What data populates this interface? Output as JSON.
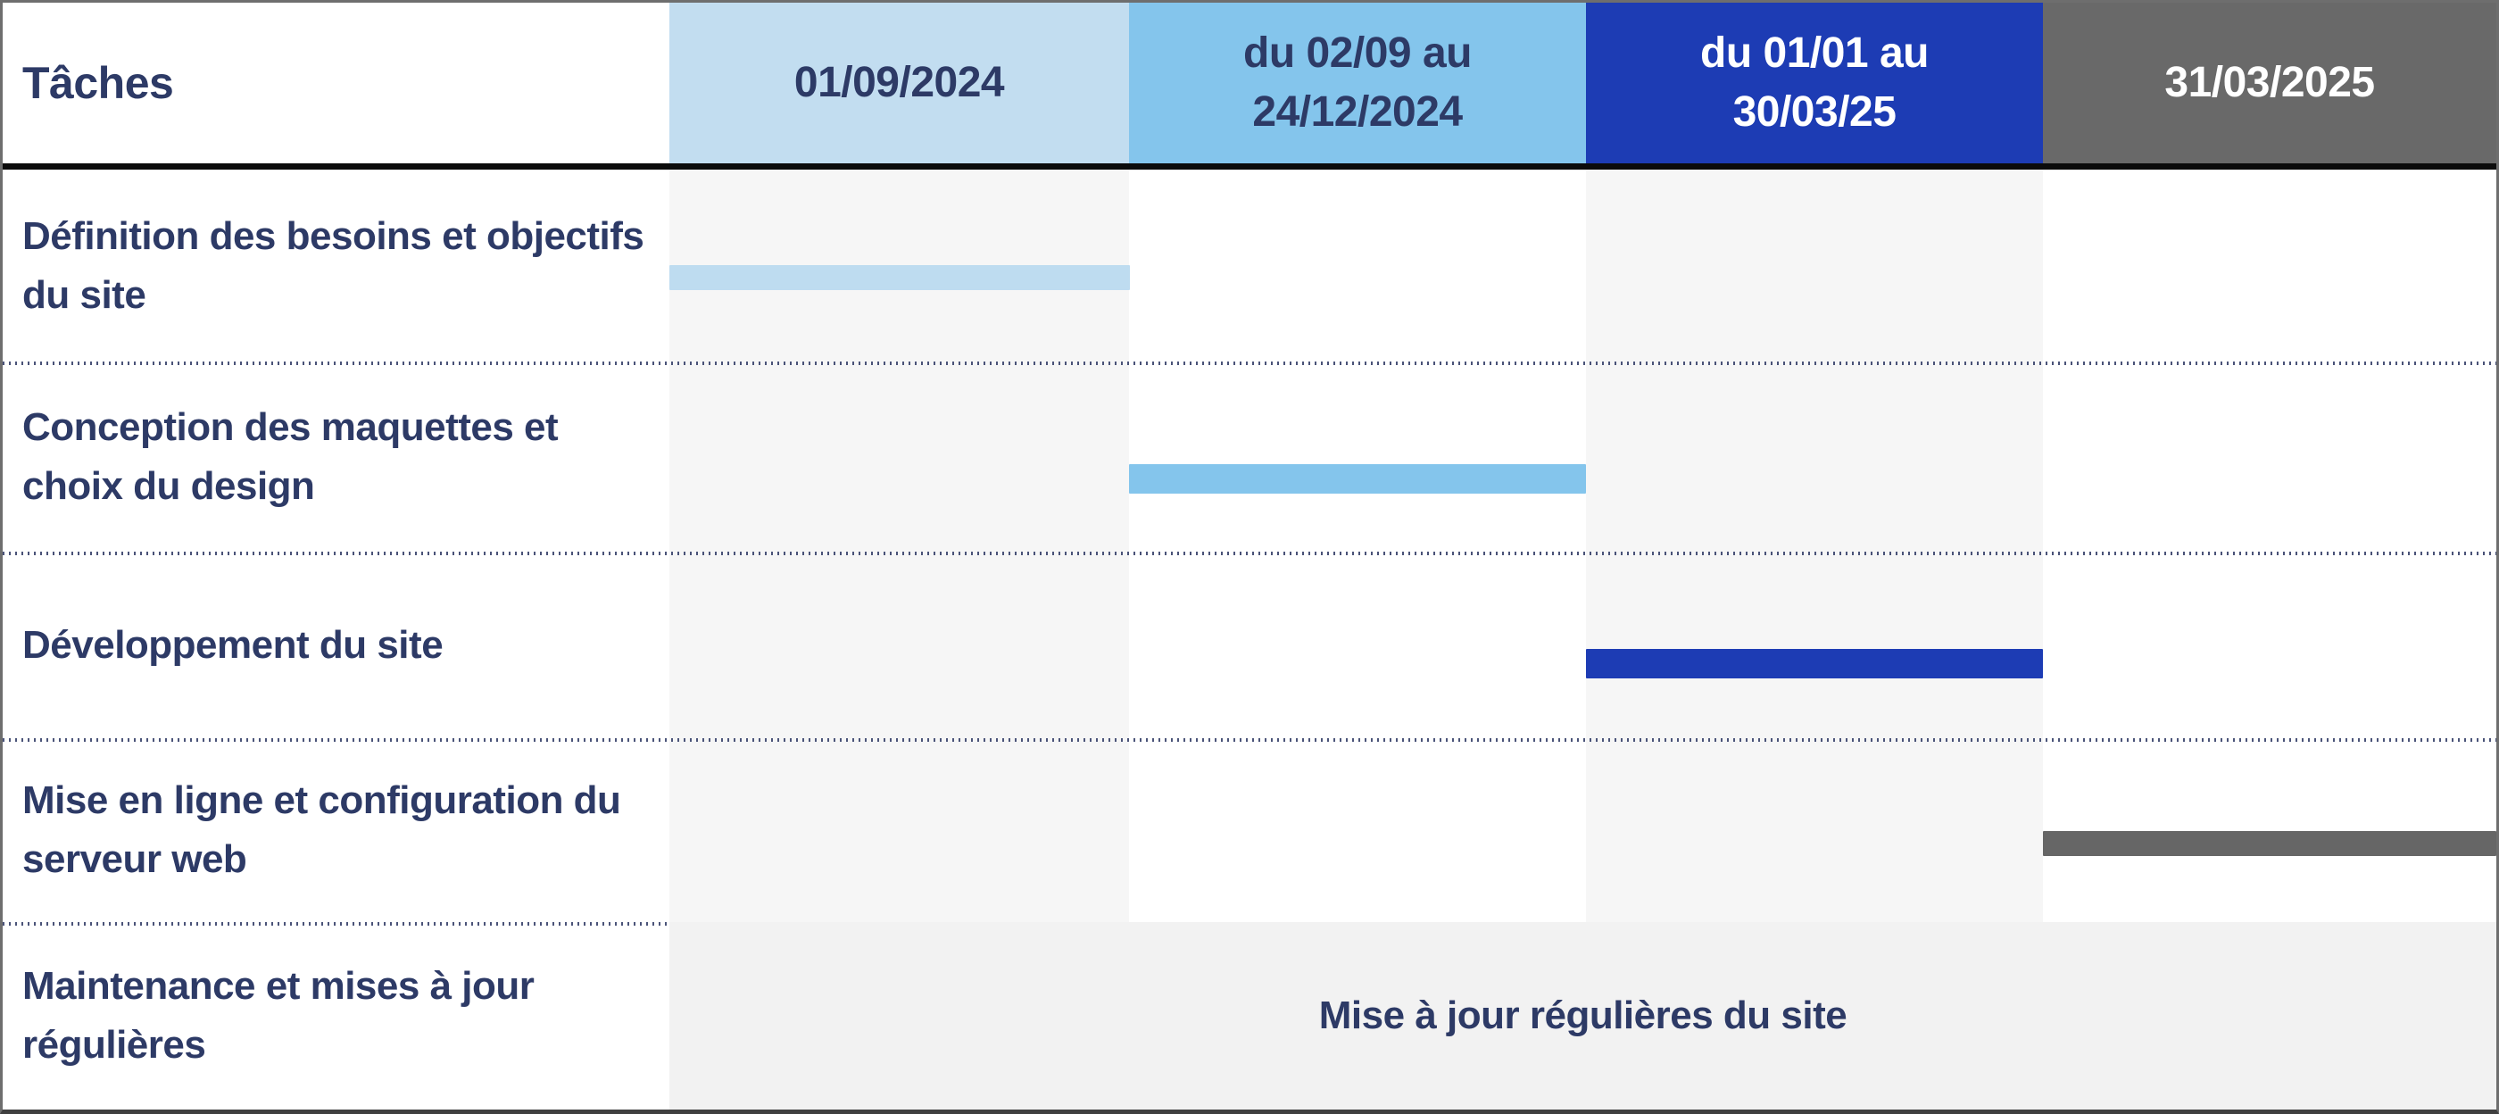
{
  "chart_data": {
    "type": "table",
    "subtype": "gantt",
    "title": "Tâches",
    "columns": [
      "Tâches",
      "01/09/2024",
      "du 02/09 au 24/12/2024",
      "du 01/01 au 30/03/25",
      "31/03/2025"
    ],
    "tasks": [
      {
        "label": "Définition des besoins et objectifs du site",
        "bar_period": "01/09/2024",
        "bar_column_index": 1
      },
      {
        "label": "Conception des maquettes et choix du design",
        "bar_period": "du 02/09 au 24/12/2024",
        "bar_column_index": 2
      },
      {
        "label": "Développement du site",
        "bar_period": "du 01/01 au 30/03/25",
        "bar_column_index": 3
      },
      {
        "label": "Mise en ligne et configuration du serveur web",
        "bar_period": "31/03/2025",
        "bar_column_index": 4
      },
      {
        "label": "Maintenance et mises à jour régulières",
        "bar_period": null,
        "bar_column_index": null,
        "note": "Mise à jour régulières du site"
      }
    ],
    "legend_position": "none",
    "grid": "dotted row dividers"
  },
  "header": {
    "col0": "Tâches",
    "col1": "01/09/2024",
    "col2": "du 02/09 au 24/12/2024",
    "col3": "du 01/01 au 30/03/25",
    "col4": "31/03/2025"
  },
  "tasks": {
    "0": {
      "label": "Définition des besoins et objectifs du site"
    },
    "1": {
      "label": "Conception des maquettes et choix du design"
    },
    "2": {
      "label": "Développement du site"
    },
    "3": {
      "label": "Mise en ligne et configuration du serveur web"
    },
    "4": {
      "label": "Maintenance et mises à jour régulières"
    }
  },
  "merged_note": "Mise à jour régulières du site",
  "colors": {
    "navy_text": "#2d3a66",
    "header_col1_bg": "#c2ddf0",
    "header_col2_bg": "#84c5ec",
    "header_col3_bg": "#1d3cb4",
    "header_col4_bg": "#696969",
    "header_light_text": "#ffffff",
    "bar_task1": "#bedcf0",
    "bar_task2": "#84c5ec",
    "bar_task3": "#1d3cb4",
    "bar_task4": "#666666",
    "stripe_bg": "#f6f6f6",
    "merged_bg": "#f2f2f2",
    "header_rule": "#0b0b0b",
    "white_bg": "#ffffff"
  }
}
